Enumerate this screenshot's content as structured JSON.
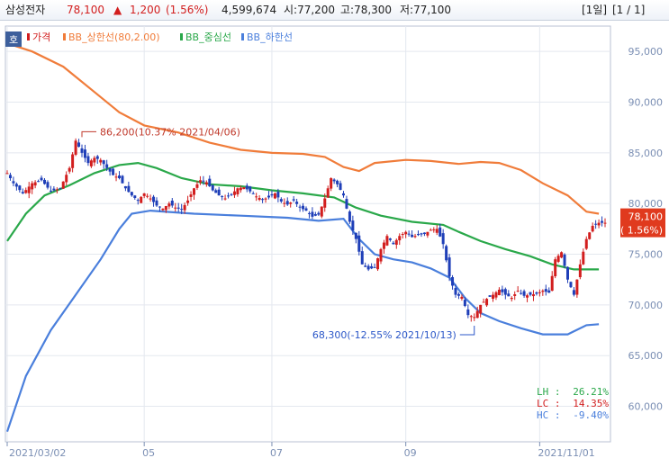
{
  "header": {
    "stock_name": "삼성전자",
    "price": "78,100",
    "change_arrow": "▲",
    "change": "1,200",
    "change_pct": "(1.56%)",
    "volume": "4,599,674",
    "open": "시:77,200",
    "high": "고:78,300",
    "low": "저:77,100",
    "period": "[1일]",
    "pages": "[1 / 1]"
  },
  "colors": {
    "price_up": "#d21e1e",
    "price_down": "#1f3fb8",
    "upper": "#f07c3a",
    "middle": "#2aa84a",
    "lower": "#4a7fdc",
    "axis_blue": "#7b8fb4",
    "price_box": "#e03a1e"
  },
  "chart_data": {
    "type": "line",
    "legend": [
      {
        "label": "가격",
        "color": "#d21e1e"
      },
      {
        "label": "BB_상한선(80,2.00)",
        "color": "#f07c3a"
      },
      {
        "label": "BB_중심선",
        "color": "#2aa84a"
      },
      {
        "label": "BB_하한선",
        "color": "#4a7fdc"
      }
    ],
    "legend_marker": "호",
    "x_ticks": [
      "2021/03/02",
      "05",
      "07",
      "09",
      "2021/11/01"
    ],
    "y_ticks": [
      "95,000",
      "90,000",
      "85,000",
      "80,000",
      "75,000",
      "70,000",
      "65,000",
      "60,000"
    ],
    "ylim": [
      56500,
      97500
    ],
    "x_tick_index": [
      0,
      44,
      85,
      128,
      171
    ],
    "n_days": 193,
    "series": [
      {
        "name": "BB_상한선(80,2.00)",
        "points": [
          [
            0,
            95800
          ],
          [
            8,
            95000
          ],
          [
            18,
            93500
          ],
          [
            28,
            91000
          ],
          [
            36,
            89000
          ],
          [
            44,
            87700
          ],
          [
            55,
            87000
          ],
          [
            65,
            86000
          ],
          [
            75,
            85300
          ],
          [
            85,
            85000
          ],
          [
            95,
            84900
          ],
          [
            102,
            84600
          ],
          [
            108,
            83600
          ],
          [
            113,
            83200
          ],
          [
            118,
            84000
          ],
          [
            128,
            84300
          ],
          [
            136,
            84200
          ],
          [
            145,
            83900
          ],
          [
            152,
            84100
          ],
          [
            158,
            84000
          ],
          [
            165,
            83300
          ],
          [
            172,
            82000
          ],
          [
            180,
            80800
          ],
          [
            186,
            79200
          ],
          [
            190,
            79000
          ]
        ]
      },
      {
        "name": "BB_중심선",
        "points": [
          [
            0,
            76300
          ],
          [
            6,
            79000
          ],
          [
            12,
            80800
          ],
          [
            20,
            81800
          ],
          [
            28,
            83000
          ],
          [
            36,
            83800
          ],
          [
            42,
            84000
          ],
          [
            48,
            83500
          ],
          [
            56,
            82500
          ],
          [
            65,
            81900
          ],
          [
            75,
            81700
          ],
          [
            85,
            81300
          ],
          [
            95,
            81000
          ],
          [
            105,
            80600
          ],
          [
            112,
            79600
          ],
          [
            120,
            78800
          ],
          [
            130,
            78200
          ],
          [
            140,
            77900
          ],
          [
            145,
            77200
          ],
          [
            152,
            76300
          ],
          [
            160,
            75500
          ],
          [
            168,
            74800
          ],
          [
            175,
            74000
          ],
          [
            182,
            73500
          ],
          [
            190,
            73500
          ]
        ]
      },
      {
        "name": "BB_하한선",
        "points": [
          [
            0,
            57500
          ],
          [
            6,
            63000
          ],
          [
            14,
            67500
          ],
          [
            22,
            71000
          ],
          [
            30,
            74500
          ],
          [
            36,
            77500
          ],
          [
            40,
            79000
          ],
          [
            46,
            79300
          ],
          [
            60,
            79000
          ],
          [
            75,
            78800
          ],
          [
            90,
            78600
          ],
          [
            100,
            78300
          ],
          [
            108,
            78500
          ],
          [
            113,
            76500
          ],
          [
            118,
            75000
          ],
          [
            124,
            74500
          ],
          [
            130,
            74200
          ],
          [
            136,
            73600
          ],
          [
            142,
            72700
          ],
          [
            147,
            70700
          ],
          [
            152,
            69200
          ],
          [
            158,
            68400
          ],
          [
            165,
            67700
          ],
          [
            172,
            67100
          ],
          [
            180,
            67100
          ],
          [
            186,
            68000
          ],
          [
            190,
            68100
          ]
        ]
      },
      {
        "name": "가격",
        "points": [
          [
            0,
            83000
          ],
          [
            2,
            82000
          ],
          [
            5,
            81000
          ],
          [
            8,
            82000
          ],
          [
            11,
            82300
          ],
          [
            14,
            81200
          ],
          [
            17,
            81500
          ],
          [
            20,
            83500
          ],
          [
            22,
            86200
          ],
          [
            24,
            85000
          ],
          [
            26,
            84000
          ],
          [
            28,
            84500
          ],
          [
            30,
            84300
          ],
          [
            32,
            83500
          ],
          [
            34,
            82800
          ],
          [
            36,
            82500
          ],
          [
            38,
            81500
          ],
          [
            40,
            80800
          ],
          [
            42,
            80300
          ],
          [
            44,
            81000
          ],
          [
            46,
            80500
          ],
          [
            48,
            79800
          ],
          [
            50,
            79500
          ],
          [
            52,
            80000
          ],
          [
            54,
            79600
          ],
          [
            56,
            79400
          ],
          [
            58,
            80300
          ],
          [
            60,
            81500
          ],
          [
            62,
            82300
          ],
          [
            64,
            82100
          ],
          [
            66,
            81300
          ],
          [
            68,
            80800
          ],
          [
            70,
            80500
          ],
          [
            72,
            80900
          ],
          [
            74,
            81500
          ],
          [
            76,
            81600
          ],
          [
            78,
            81200
          ],
          [
            80,
            80700
          ],
          [
            82,
            80400
          ],
          [
            84,
            80600
          ],
          [
            86,
            81000
          ],
          [
            88,
            80200
          ],
          [
            90,
            79900
          ],
          [
            92,
            80300
          ],
          [
            94,
            79600
          ],
          [
            96,
            79300
          ],
          [
            98,
            78700
          ],
          [
            100,
            78900
          ],
          [
            102,
            80500
          ],
          [
            104,
            82500
          ],
          [
            106,
            81900
          ],
          [
            108,
            80800
          ],
          [
            110,
            78200
          ],
          [
            112,
            76500
          ],
          [
            114,
            74000
          ],
          [
            116,
            73500
          ],
          [
            118,
            73700
          ],
          [
            120,
            75500
          ],
          [
            122,
            76800
          ],
          [
            124,
            76000
          ],
          [
            126,
            76800
          ],
          [
            128,
            77200
          ],
          [
            130,
            76700
          ],
          [
            132,
            76900
          ],
          [
            134,
            77000
          ],
          [
            136,
            77400
          ],
          [
            138,
            77500
          ],
          [
            140,
            76000
          ],
          [
            142,
            72800
          ],
          [
            144,
            71000
          ],
          [
            146,
            70800
          ],
          [
            148,
            69000
          ],
          [
            150,
            68800
          ],
          [
            152,
            70000
          ],
          [
            154,
            70600
          ],
          [
            156,
            71000
          ],
          [
            158,
            71500
          ],
          [
            160,
            71000
          ],
          [
            162,
            70700
          ],
          [
            164,
            71400
          ],
          [
            166,
            70900
          ],
          [
            168,
            71000
          ],
          [
            170,
            71100
          ],
          [
            172,
            71400
          ],
          [
            174,
            71200
          ],
          [
            176,
            74500
          ],
          [
            178,
            75200
          ],
          [
            180,
            72500
          ],
          [
            182,
            71000
          ],
          [
            184,
            74000
          ],
          [
            186,
            76500
          ],
          [
            188,
            77800
          ],
          [
            190,
            78100
          ]
        ]
      }
    ],
    "annotations": [
      {
        "text": "86,200(10.37% 2021/04/06)",
        "index": 24,
        "value": 86200
      },
      {
        "text": "68,300(-12.55% 2021/10/13)",
        "index": 150,
        "value": 68300
      }
    ],
    "current_price_box": {
      "line1": "78,100",
      "line2": "( 1.56%)"
    },
    "stats": [
      {
        "label": "LH :",
        "value": "26.21%",
        "color": "#2aa84a"
      },
      {
        "label": "LC :",
        "value": "14.35%",
        "color": "#d21e1e"
      },
      {
        "label": "HC :",
        "value": "-9.40%",
        "color": "#4a7fdc"
      }
    ],
    "grid": true
  }
}
